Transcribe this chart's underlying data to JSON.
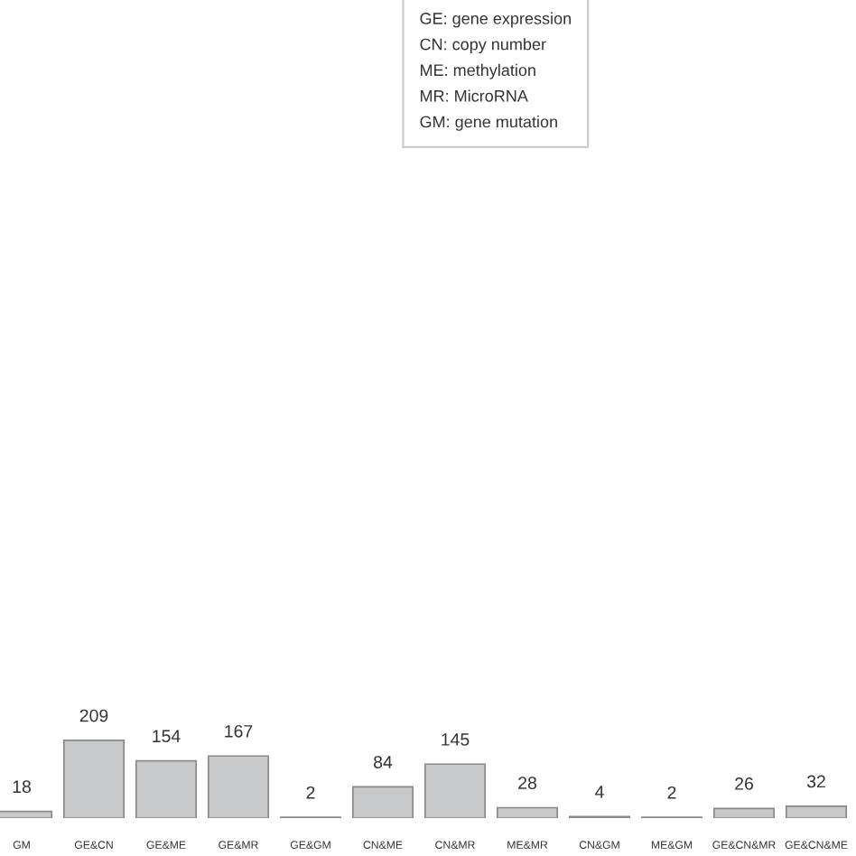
{
  "chart_data": {
    "type": "bar",
    "categories": [
      "GM",
      "GE&CN",
      "GE&ME",
      "GE&MR",
      "GE&GM",
      "CN&ME",
      "CN&MR",
      "ME&MR",
      "CN&GM",
      "ME&GM",
      "GE&CN&MR",
      "GE&CN&ME"
    ],
    "values": [
      18,
      209,
      154,
      167,
      2,
      84,
      145,
      28,
      4,
      2,
      26,
      32
    ],
    "color": "#c8c9ca",
    "ylim": [
      0,
      2200
    ],
    "data_labels": true,
    "grid": false,
    "legend": false,
    "tick_labels": "x",
    "annotations": [
      "GE: gene expression\nCN: copy number\nME: methylation\nMR: MicroRNA\nGM: gene mutation"
    ]
  }
}
